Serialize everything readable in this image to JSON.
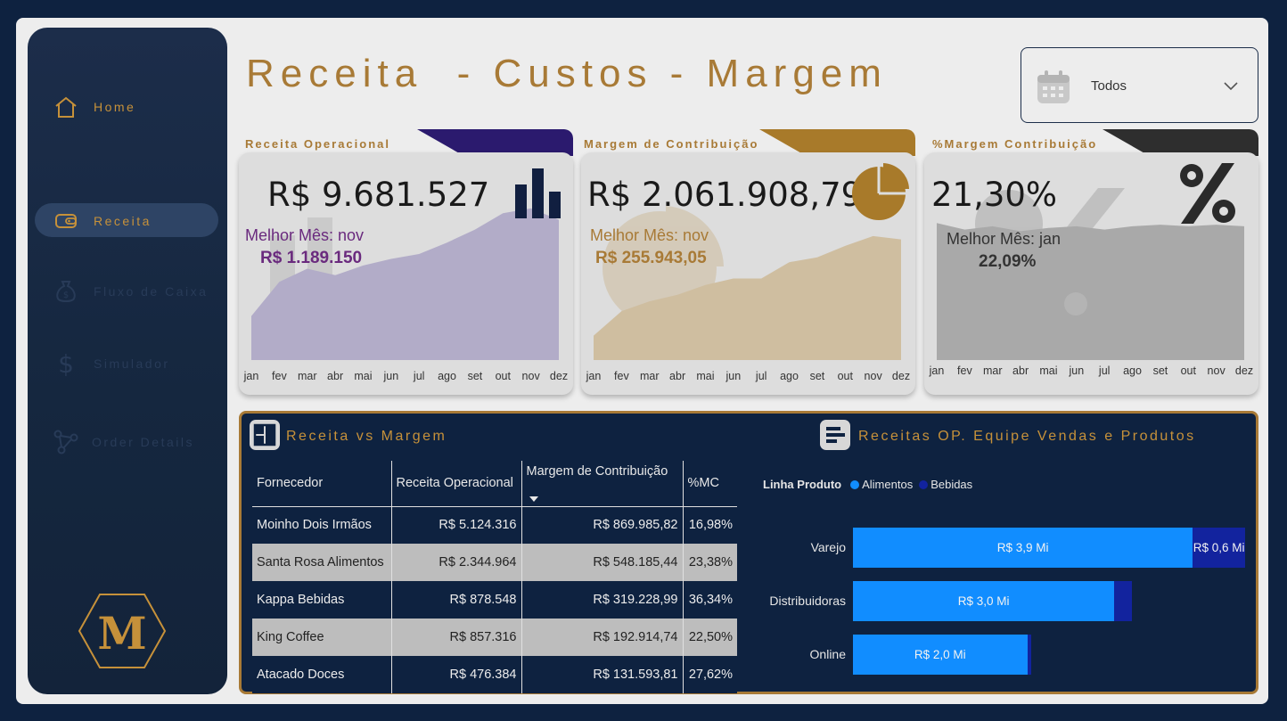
{
  "header": {
    "title": "Receita  - Custos - Margem"
  },
  "filter": {
    "value": "Todos",
    "icon": "calendar-icon"
  },
  "sidebar": {
    "items": [
      {
        "label": "Home",
        "icon": "home-icon",
        "state": "enabled"
      },
      {
        "label": "Receita",
        "icon": "wallet-icon",
        "state": "active"
      },
      {
        "label": "Fluxo de Caixa",
        "icon": "money-bag-icon",
        "state": "disabled"
      },
      {
        "label": "Simulador",
        "icon": "dollar-icon",
        "state": "disabled"
      },
      {
        "label": "Order Details",
        "icon": "nodes-icon",
        "state": "disabled"
      }
    ],
    "logo_text": "M"
  },
  "months": [
    "jan",
    "fev",
    "mar",
    "abr",
    "mai",
    "jun",
    "jul",
    "ago",
    "set",
    "out",
    "nov",
    "dez"
  ],
  "kpis": [
    {
      "title": "Receita Operacional",
      "value": "R$ 9.681.527",
      "best_label": "Melhor Mês: nov",
      "best_value": "R$ 1.189.150",
      "icon": "bar-chart-icon",
      "accent": "#2b1a6e",
      "area_color": "#b2acc8",
      "trend": [
        0.27,
        0.48,
        0.56,
        0.52,
        0.58,
        0.62,
        0.65,
        0.72,
        0.8,
        0.9,
        0.93,
        0.86
      ]
    },
    {
      "title": "Margem de Contribuição",
      "value": "R$ 2.061.908,79",
      "best_label": "Melhor Mês: nov",
      "best_value": "R$ 255.943,05",
      "icon": "pie-chart-icon",
      "accent": "#a87a2a",
      "area_color": "#cfbea0",
      "trend": [
        0.15,
        0.3,
        0.36,
        0.4,
        0.46,
        0.5,
        0.5,
        0.6,
        0.63,
        0.7,
        0.76,
        0.74
      ]
    },
    {
      "title": "%Margem Contribuição",
      "value": "21,30%",
      "best_label": "Melhor Mês: jan",
      "best_value": "22,09%",
      "icon": "percent-icon",
      "accent": "#2e2e2e",
      "area_color": "#a9a9a9",
      "trend": [
        0.84,
        0.8,
        0.82,
        0.79,
        0.81,
        0.82,
        0.8,
        0.82,
        0.83,
        0.82,
        0.83,
        0.82
      ]
    }
  ],
  "table_panel": {
    "title": "Receita vs Margem",
    "columns": [
      "Fornecedor",
      "Receita Operacional",
      "Margem de Contribuição",
      "%MC"
    ],
    "rows": [
      [
        "Moinho Dois Irmãos",
        "R$ 5.124.316",
        "R$ 869.985,82",
        "16,98%"
      ],
      [
        "Santa Rosa Alimentos",
        "R$ 2.344.964",
        "R$ 548.185,44",
        "23,38%"
      ],
      [
        "Kappa Bebidas",
        "R$ 878.548",
        "R$ 319.228,99",
        "36,34%"
      ],
      [
        "King Coffee",
        "R$ 857.316",
        "R$ 192.914,74",
        "22,50%"
      ],
      [
        "Atacado Doces",
        "R$ 476.384",
        "R$ 131.593,81",
        "27,62%"
      ]
    ]
  },
  "chart_panel": {
    "title": "Receitas OP. Equipe Vendas e Produtos"
  },
  "chart_data": {
    "type": "bar",
    "orientation": "horizontal",
    "stacked": true,
    "legend_title": "Linha Produto",
    "legend_position": "top-left",
    "categories": [
      "Varejo",
      "Distribuidoras",
      "Online"
    ],
    "series": [
      {
        "name": "Alimentos",
        "color": "#118dff",
        "values": [
          3.9,
          3.0,
          2.0
        ],
        "labels": [
          "R$ 3,9 Mi",
          "R$ 3,0 Mi",
          "R$ 2,0 Mi"
        ]
      },
      {
        "name": "Bebidas",
        "color": "#12239e",
        "values": [
          0.6,
          0.2,
          0.05
        ],
        "labels": [
          "R$ 0,6 Mi",
          "",
          ""
        ]
      }
    ],
    "xlim": [
      0,
      4.5
    ]
  }
}
